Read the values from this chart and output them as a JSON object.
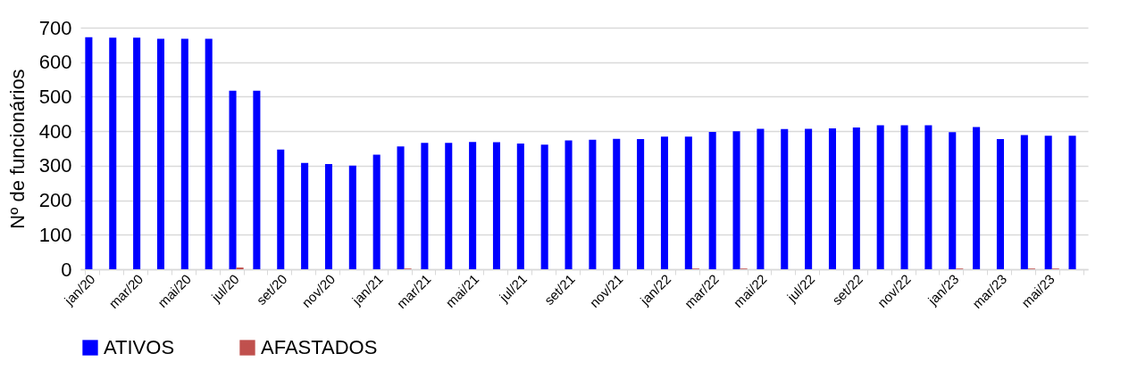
{
  "chart_data": {
    "type": "bar",
    "ylabel": "Nº de funcionários",
    "categories": [
      "jan/20",
      null,
      "mar/20",
      null,
      "mai/20",
      null,
      "jul/20",
      null,
      "set/20",
      null,
      "nov/20",
      null,
      "jan/21",
      null,
      "mar/21",
      null,
      "mai/21",
      null,
      "jul/21",
      null,
      "set/21",
      null,
      "nov/21",
      null,
      "jan/22",
      null,
      "mar/22",
      null,
      "mai/22",
      null,
      "jul/22",
      null,
      "set/22",
      null,
      "nov/22",
      null,
      "jan/23",
      null,
      "mar/23",
      null,
      "mai/23",
      null
    ],
    "series": [
      {
        "name": "ATIVOS",
        "color": "#0000ff",
        "values": [
          672,
          671,
          671,
          668,
          668,
          668,
          517,
          517,
          347,
          308,
          305,
          300,
          332,
          356,
          366,
          366,
          369,
          368,
          364,
          361,
          373,
          375,
          378,
          377,
          384,
          384,
          398,
          400,
          407,
          406,
          407,
          408,
          411,
          417,
          417,
          417,
          397,
          412,
          377,
          389,
          387,
          387
        ]
      },
      {
        "name": "AFASTADOS",
        "color": "#c0504d",
        "values": [
          0,
          0,
          0,
          0,
          0,
          0,
          5,
          0,
          0,
          0,
          0,
          0,
          0,
          2,
          0,
          0,
          0,
          0,
          0,
          0,
          0,
          0,
          0,
          0,
          0,
          2,
          0,
          2,
          0,
          0,
          0,
          0,
          0,
          0,
          0,
          0,
          2,
          0,
          0,
          2,
          2,
          0
        ]
      }
    ],
    "ylim": [
      0,
      700
    ],
    "yticks": [
      0,
      100,
      200,
      300,
      400,
      500,
      600,
      700
    ],
    "grid": "y",
    "legend": "bottom"
  }
}
